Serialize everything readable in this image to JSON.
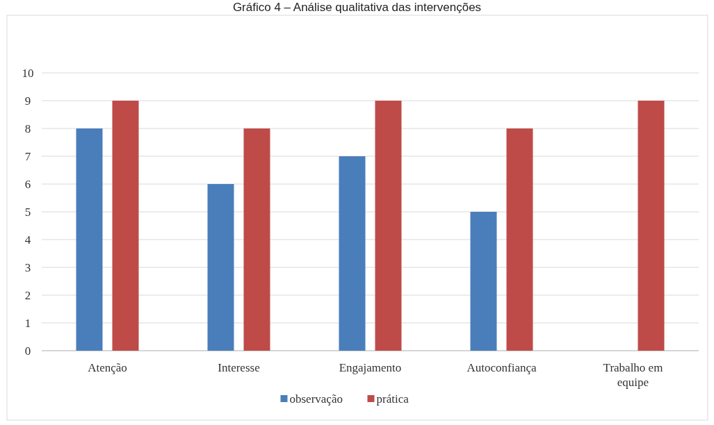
{
  "chart_data": {
    "type": "bar",
    "title": "Gráfico 4 – Análise qualitativa das intervenções",
    "categories": [
      "Atenção",
      "Interesse",
      "Engajamento",
      "Autoconfiança",
      "Trabalho em equipe"
    ],
    "series": [
      {
        "name": "observação",
        "color": "#4a7ebb",
        "values": [
          8,
          6,
          7,
          5,
          null
        ]
      },
      {
        "name": "prática",
        "color": "#be4b48",
        "values": [
          9,
          8,
          9,
          8,
          9
        ]
      }
    ],
    "ylim": [
      0,
      10
    ],
    "yticks": [
      0,
      1,
      2,
      3,
      4,
      5,
      6,
      7,
      8,
      9,
      10
    ],
    "grid": "y",
    "legend": "bottom"
  }
}
